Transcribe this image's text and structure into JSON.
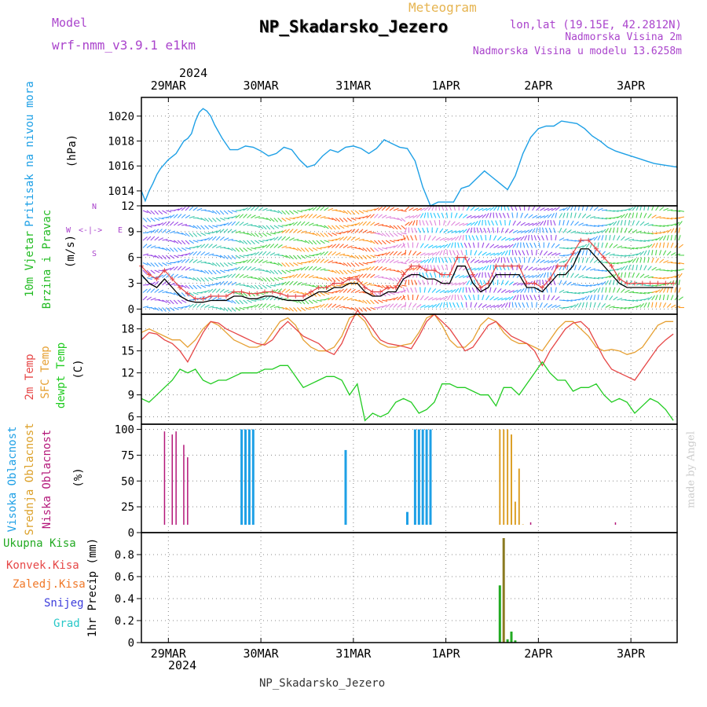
{
  "header": {
    "model_label": "Model",
    "model_value": "wrf-nmm_v3.9.1 e1km",
    "product": "Meteogram",
    "station": "NP_Skadarsko_Jezero",
    "lonlat": "lon,lat (19.15E, 42.2812N)",
    "elevation": "Nadmorska Visina 2m",
    "model_elevation": "Nadmorska Visina u modelu 13.6258m",
    "footer_station": "NP_Skadarsko_Jezero",
    "credit": "made by Angel"
  },
  "colors": {
    "pressure": "#1ea0e6",
    "wind_label": "#22bb22",
    "temp2m": "#e64646",
    "sfc": "#e6a032",
    "dew": "#22cc22",
    "high_cloud": "#1ea0e6",
    "mid_cloud": "#dca028",
    "low_cloud": "#b4187a",
    "total_precip": "#22aa22",
    "conv_precip": "#e64646",
    "frz_precip": "#f07828",
    "snow": "#3c3cdc",
    "graupel": "#28c8c8",
    "purple_text": "#aa44cc"
  },
  "time_axis": {
    "top_year": "2024",
    "bottom_year": "2024",
    "days": [
      "29MAR",
      "30MAR",
      "31MAR",
      "1APR",
      "2APR",
      "3APR"
    ],
    "start_hour": -7,
    "end_hour": 132
  },
  "chart_data": [
    {
      "type": "line",
      "title": "",
      "ylabel": [
        "Pritisak na nivou mora",
        "(hPa)"
      ],
      "ylim": [
        1012.8,
        1021.5
      ],
      "yticks": [
        1014,
        1016,
        1018,
        1020
      ],
      "grid": true,
      "series": [
        {
          "key": "pressure",
          "x": [
            -7,
            -6,
            -5,
            -4,
            -3,
            -2,
            0,
            2,
            4,
            5,
            6,
            7,
            8,
            9,
            10,
            11,
            12,
            14,
            16,
            18,
            20,
            22,
            24,
            26,
            28,
            30,
            32,
            34,
            36,
            38,
            40,
            42,
            44,
            46,
            48,
            50,
            52,
            54,
            56,
            58,
            60,
            62,
            64,
            66,
            68,
            70,
            72,
            74,
            76,
            78,
            80,
            82,
            84,
            86,
            88,
            90,
            92,
            94,
            96,
            98,
            100,
            102,
            104,
            106,
            108,
            110,
            112,
            114,
            116,
            118,
            120,
            122,
            124,
            126,
            128,
            130,
            132
          ],
          "values": [
            1014.0,
            1013.2,
            1014.0,
            1014.6,
            1015.3,
            1015.8,
            1016.5,
            1017.0,
            1018.0,
            1018.2,
            1018.6,
            1019.6,
            1020.3,
            1020.6,
            1020.4,
            1020.0,
            1019.3,
            1018.2,
            1017.3,
            1017.3,
            1017.6,
            1017.5,
            1017.2,
            1016.8,
            1017.0,
            1017.5,
            1017.3,
            1016.5,
            1015.9,
            1016.1,
            1016.8,
            1017.3,
            1017.1,
            1017.5,
            1017.6,
            1017.4,
            1017.0,
            1017.4,
            1018.1,
            1017.8,
            1017.5,
            1017.4,
            1016.4,
            1014.3,
            1012.8,
            1013.1,
            1013.1,
            1013.1,
            1014.2,
            1014.4,
            1015.0,
            1015.6,
            1015.1,
            1014.6,
            1014.1,
            1015.2,
            1017.0,
            1018.3,
            1019.0,
            1019.2,
            1019.2,
            1019.6,
            1019.5,
            1019.4,
            1019.0,
            1018.4,
            1018.0,
            1017.5,
            1017.2,
            1017.0,
            1016.8,
            1016.6,
            1016.4,
            1016.2,
            1016.1,
            1016.0,
            1015.9
          ]
        }
      ]
    },
    {
      "type": "line",
      "title": "",
      "ylabel": [
        "10m Vjetar",
        "Brzina i Pravac",
        "(m/s)"
      ],
      "ylim": [
        -0.6,
        12
      ],
      "yticks": [
        0,
        3,
        6,
        9,
        12
      ],
      "grid": true,
      "compass_legend": {
        "n": "N",
        "s": "S",
        "e": "E",
        "w": "W"
      },
      "series": [
        {
          "key": "wind_speed",
          "x": [
            -7,
            -5,
            -3,
            -1,
            1,
            3,
            5,
            7,
            9,
            11,
            13,
            15,
            17,
            19,
            21,
            23,
            25,
            27,
            29,
            31,
            33,
            35,
            37,
            39,
            41,
            43,
            45,
            47,
            49,
            51,
            53,
            55,
            57,
            59,
            61,
            63,
            65,
            67,
            69,
            71,
            73,
            75,
            77,
            79,
            81,
            83,
            85,
            87,
            89,
            91,
            93,
            95,
            97,
            99,
            101,
            103,
            105,
            107,
            109,
            111,
            113,
            115,
            117,
            119,
            121,
            123,
            125,
            127,
            129,
            131
          ],
          "values": [
            4,
            3,
            2.5,
            3.5,
            2.5,
            1.5,
            1,
            0.8,
            0.8,
            1,
            1,
            1,
            1.5,
            1.5,
            1.2,
            1.2,
            1.5,
            1.5,
            1.2,
            1,
            1,
            1,
            1.5,
            2,
            2,
            2.5,
            2.5,
            3,
            3,
            2,
            1.5,
            1.5,
            2,
            2,
            3.5,
            4,
            4,
            3.5,
            3.5,
            3,
            3,
            5,
            5,
            3,
            2,
            2.5,
            4,
            4,
            4,
            4,
            2.5,
            2.5,
            2,
            3,
            4,
            4,
            5,
            7,
            7,
            6,
            5,
            4,
            3,
            2.5,
            2.5,
            2.5,
            2.5,
            2.5,
            2.5,
            2.5
          ]
        },
        {
          "key": "wind_gust",
          "x": [
            -7,
            -5,
            -3,
            -1,
            1,
            3,
            5,
            7,
            9,
            11,
            13,
            15,
            17,
            19,
            21,
            23,
            25,
            27,
            29,
            31,
            33,
            35,
            37,
            39,
            41,
            43,
            45,
            47,
            49,
            51,
            53,
            55,
            57,
            59,
            61,
            63,
            65,
            67,
            69,
            71,
            73,
            75,
            77,
            79,
            81,
            83,
            85,
            87,
            89,
            91,
            93,
            95,
            97,
            99,
            101,
            103,
            105,
            107,
            109,
            111,
            113,
            115,
            117,
            119,
            121,
            123,
            125,
            127,
            129,
            131
          ],
          "values": [
            5,
            4,
            3.5,
            4.5,
            3.5,
            2.5,
            1.8,
            1.2,
            1.2,
            1.5,
            1.5,
            1.5,
            2,
            2,
            1.8,
            1.8,
            2,
            2,
            1.8,
            1.5,
            1.5,
            1.5,
            2,
            2.5,
            2.5,
            3,
            3,
            3.5,
            3.5,
            2.5,
            2,
            2,
            2.5,
            2.5,
            4,
            5,
            5,
            4.5,
            4.5,
            4,
            4,
            6,
            6,
            4,
            2.5,
            3,
            5,
            5,
            5,
            5,
            3,
            3,
            2.5,
            3.5,
            5,
            5,
            6.5,
            8,
            8,
            7,
            6,
            5,
            3.5,
            3,
            3,
            3,
            3,
            3,
            3,
            3
          ]
        }
      ]
    },
    {
      "type": "line",
      "title": "",
      "ylabel": [
        "2m Temp",
        "SFC Temp",
        "dewpt Temp",
        "(C)"
      ],
      "ylim": [
        5,
        20
      ],
      "yticks": [
        6,
        9,
        12,
        15,
        18
      ],
      "grid": true,
      "series": [
        {
          "key": "temp2m",
          "x": [
            -7,
            -5,
            -3,
            -1,
            1,
            3,
            5,
            7,
            9,
            11,
            13,
            15,
            17,
            19,
            21,
            23,
            25,
            27,
            29,
            31,
            33,
            35,
            37,
            39,
            41,
            43,
            45,
            47,
            49,
            51,
            53,
            55,
            57,
            59,
            61,
            63,
            65,
            67,
            69,
            71,
            73,
            75,
            77,
            79,
            81,
            83,
            85,
            87,
            89,
            91,
            93,
            95,
            97,
            99,
            101,
            103,
            105,
            107,
            109,
            111,
            113,
            115,
            117,
            119,
            121,
            123,
            125,
            127,
            129,
            131
          ],
          "values": [
            16.5,
            17.5,
            17.3,
            16.5,
            16.0,
            15.0,
            13.5,
            15.5,
            17.5,
            19.0,
            18.8,
            18.0,
            17.5,
            17.0,
            16.5,
            16.0,
            15.8,
            16.5,
            18.0,
            19.0,
            18.0,
            17.0,
            16.5,
            16.0,
            15.0,
            14.5,
            16.0,
            18.5,
            20.5,
            19.5,
            18.0,
            16.5,
            16.0,
            15.8,
            15.6,
            15.3,
            17.0,
            19.0,
            20.0,
            19.0,
            18.0,
            16.5,
            15.0,
            15.5,
            17.0,
            18.5,
            19.0,
            18.0,
            17.0,
            16.5,
            16.0,
            15.0,
            13.0,
            15.0,
            16.5,
            18.0,
            18.8,
            19.0,
            18.0,
            16.0,
            14.0,
            12.5,
            12.0,
            11.5,
            11.0,
            12.5,
            14.0,
            15.5,
            16.5,
            17.3
          ]
        },
        {
          "key": "sfc",
          "x": [
            -7,
            -5,
            -3,
            -1,
            1,
            3,
            5,
            7,
            9,
            11,
            13,
            15,
            17,
            19,
            21,
            23,
            25,
            27,
            29,
            31,
            33,
            35,
            37,
            39,
            41,
            43,
            45,
            47,
            49,
            51,
            53,
            55,
            57,
            59,
            61,
            63,
            65,
            67,
            69,
            71,
            73,
            75,
            77,
            79,
            81,
            83,
            85,
            87,
            89,
            91,
            93,
            95,
            97,
            99,
            101,
            103,
            105,
            107,
            109,
            111,
            113,
            115,
            117,
            119,
            121,
            123,
            125,
            127,
            129,
            131
          ],
          "values": [
            17.5,
            18.0,
            17.5,
            17.0,
            16.5,
            16.5,
            15.5,
            16.5,
            18.0,
            19.0,
            18.5,
            17.5,
            16.5,
            16.0,
            15.5,
            15.5,
            16.0,
            17.5,
            19.0,
            19.5,
            18.5,
            16.5,
            15.5,
            15.0,
            15.0,
            15.5,
            17.0,
            19.5,
            20.0,
            19.0,
            17.0,
            16.0,
            15.5,
            15.5,
            15.8,
            16.0,
            17.5,
            19.5,
            20.0,
            18.5,
            16.5,
            15.5,
            15.5,
            16.5,
            18.5,
            19.5,
            19.0,
            17.5,
            16.5,
            16.0,
            16.0,
            15.5,
            15.0,
            16.5,
            18.0,
            19.0,
            19.0,
            18.0,
            17.0,
            15.5,
            15.0,
            15.2,
            15.0,
            14.5,
            14.8,
            15.5,
            17.0,
            18.5,
            19.0,
            19.0
          ]
        },
        {
          "key": "dew",
          "x": [
            -7,
            -5,
            -3,
            -1,
            1,
            3,
            5,
            7,
            9,
            11,
            13,
            15,
            17,
            19,
            21,
            23,
            25,
            27,
            29,
            31,
            33,
            35,
            37,
            39,
            41,
            43,
            45,
            47,
            49,
            51,
            53,
            55,
            57,
            59,
            61,
            63,
            65,
            67,
            69,
            71,
            73,
            75,
            77,
            79,
            81,
            83,
            85,
            87,
            89,
            91,
            93,
            95,
            97,
            99,
            101,
            103,
            105,
            107,
            109,
            111,
            113,
            115,
            117,
            119,
            121,
            123,
            125,
            127,
            129,
            131
          ],
          "values": [
            8.5,
            8.0,
            9.0,
            10.0,
            11.0,
            12.5,
            12.0,
            12.5,
            11.0,
            10.5,
            11.0,
            11.0,
            11.5,
            12.0,
            12.0,
            12.0,
            12.5,
            12.5,
            13.0,
            13.0,
            11.5,
            10.0,
            10.5,
            11.0,
            11.5,
            11.5,
            11.0,
            9.0,
            10.5,
            5.5,
            6.5,
            6.0,
            6.5,
            8.0,
            8.5,
            8.0,
            6.5,
            7.0,
            8.0,
            10.5,
            10.5,
            10.0,
            10.0,
            9.5,
            9.0,
            9.0,
            7.5,
            10.0,
            10.0,
            9.0,
            10.5,
            12.0,
            13.5,
            12.0,
            11.0,
            11.0,
            9.5,
            10.0,
            10.0,
            10.5,
            9.0,
            8.0,
            8.5,
            8.0,
            6.5,
            7.5,
            8.5,
            8.0,
            7.0,
            5.5
          ]
        }
      ]
    },
    {
      "type": "bar",
      "title": "",
      "ylabel": [
        "Visoka Oblacnost",
        "Srednja Oblacnost",
        "Niska Oblacnost",
        "(%)"
      ],
      "ylim": [
        0,
        105
      ],
      "yticks": [
        0,
        25,
        50,
        75,
        100
      ],
      "grid": true,
      "series": [
        {
          "key": "high_cloud",
          "x": [
            19,
            20,
            21,
            22,
            46,
            62,
            64,
            65,
            66,
            67,
            68
          ],
          "values": [
            100,
            100,
            100,
            100,
            80,
            20,
            100,
            100,
            100,
            100,
            100
          ]
        },
        {
          "key": "mid_cloud",
          "x": [
            86,
            87,
            88,
            89,
            90,
            91,
            92,
            93
          ],
          "values": [
            100,
            100,
            100,
            95,
            30,
            62,
            8,
            3
          ]
        },
        {
          "key": "low_cloud",
          "x": [
            -1,
            1,
            2,
            4,
            5,
            89,
            94,
            116
          ],
          "values": [
            98,
            95,
            98,
            85,
            73,
            3,
            10,
            10
          ]
        }
      ]
    },
    {
      "type": "bar",
      "title": "",
      "ylabel": [
        "Ukupna Kisa",
        "Konvek.Kisa",
        "Zaledj.Kisa",
        "Snijeg",
        "Grad",
        "1hr Precip (mm)"
      ],
      "ylim": [
        0,
        1.0
      ],
      "yticks": [
        0,
        0.2,
        0.4,
        0.6,
        0.8
      ],
      "grid": true,
      "series": [
        {
          "key": "total_precip",
          "x": [
            86,
            87,
            88,
            89,
            90
          ],
          "values": [
            0.52,
            0.95,
            0.03,
            0.1,
            0.02
          ]
        }
      ]
    }
  ]
}
